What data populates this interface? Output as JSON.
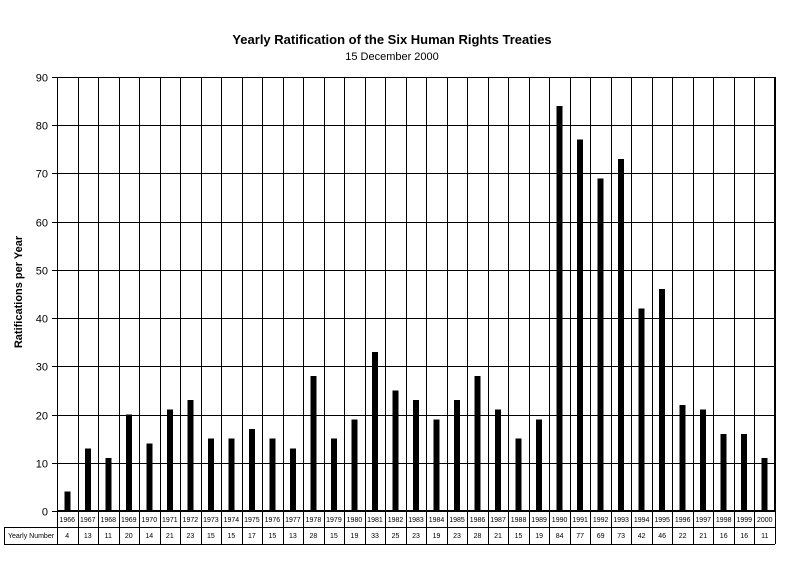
{
  "chart_data": {
    "type": "bar",
    "title": "Yearly Ratification of the Six Human Rights Treaties",
    "subtitle": "15 December 2000",
    "ylabel": "Ratifications per Year",
    "xlabel": "",
    "ylim": [
      0,
      90
    ],
    "yticks": [
      0,
      10,
      20,
      30,
      40,
      50,
      60,
      70,
      80,
      90
    ],
    "grid": true,
    "bar_color": "#000000",
    "table_row_label": "Yearly Number",
    "categories": [
      "1966",
      "1967",
      "1968",
      "1969",
      "1970",
      "1971",
      "1972",
      "1973",
      "1974",
      "1975",
      "1976",
      "1977",
      "1978",
      "1979",
      "1980",
      "1981",
      "1982",
      "1983",
      "1984",
      "1985",
      "1986",
      "1987",
      "1988",
      "1989",
      "1990",
      "1991",
      "1992",
      "1993",
      "1994",
      "1995",
      "1996",
      "1997",
      "1998",
      "1999",
      "2000"
    ],
    "values": [
      4,
      13,
      11,
      20,
      14,
      21,
      23,
      15,
      15,
      17,
      15,
      13,
      28,
      15,
      19,
      33,
      25,
      23,
      19,
      23,
      28,
      21,
      15,
      19,
      84,
      77,
      69,
      73,
      42,
      46,
      22,
      21,
      16,
      16,
      11
    ]
  }
}
